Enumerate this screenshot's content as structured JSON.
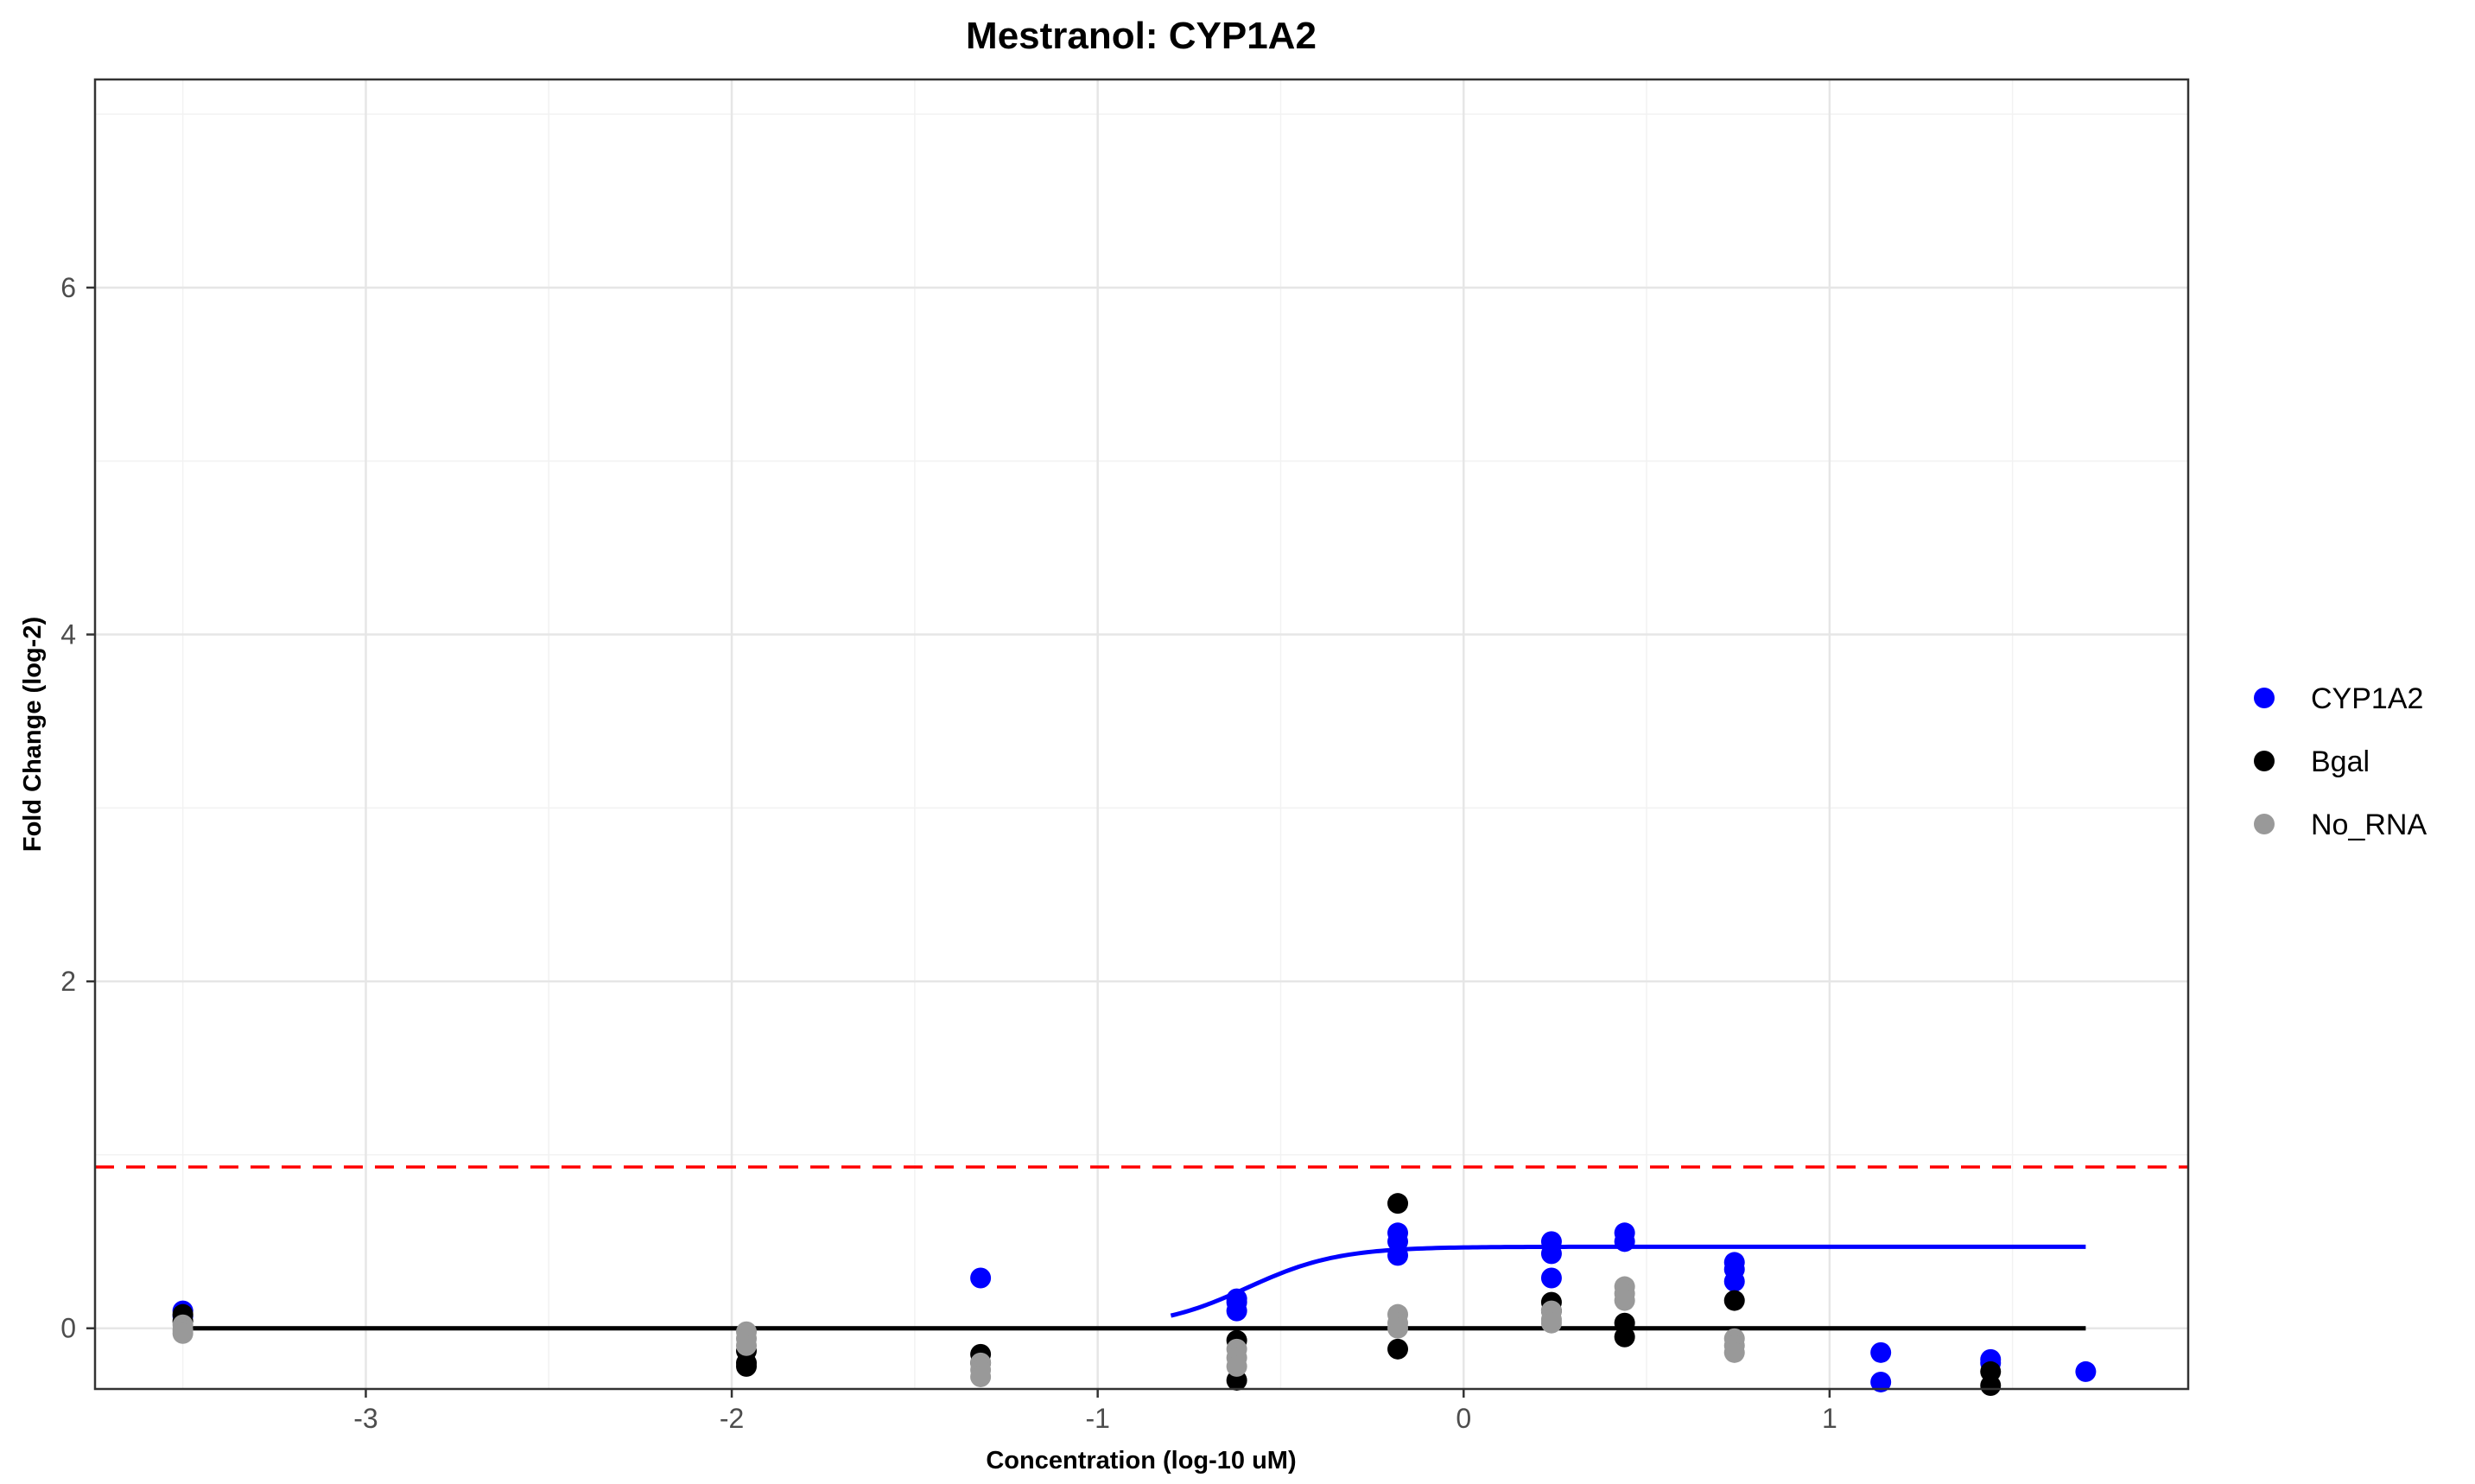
{
  "chart_data": {
    "type": "scatter",
    "title": "Mestranol: CYP1A2",
    "xlabel": "Concentration (log-10 uM)",
    "ylabel": "Fold Change (log-2)",
    "xlim": [
      -3.74,
      1.98
    ],
    "ylim": [
      -0.35,
      7.2
    ],
    "x_ticks": [
      -3,
      -2,
      -1,
      0,
      1
    ],
    "y_ticks": [
      0,
      2,
      4,
      6
    ],
    "grid": true,
    "legend_position": "right",
    "threshold_line": {
      "y": 0.93,
      "style": "dashed",
      "color": "#ff0000"
    },
    "series": [
      {
        "name": "CYP1A2",
        "color": "#0000ff",
        "points": [
          [
            -3.5,
            0.1
          ],
          [
            -3.5,
            0.07
          ],
          [
            -1.32,
            0.29
          ],
          [
            -0.62,
            0.17
          ],
          [
            -0.62,
            0.15
          ],
          [
            -0.62,
            0.1
          ],
          [
            -0.18,
            0.55
          ],
          [
            -0.18,
            0.5
          ],
          [
            -0.18,
            0.42
          ],
          [
            0.24,
            0.5
          ],
          [
            0.24,
            0.43
          ],
          [
            0.24,
            0.29
          ],
          [
            0.44,
            0.55
          ],
          [
            0.44,
            0.5
          ],
          [
            0.74,
            0.38
          ],
          [
            0.74,
            0.34
          ],
          [
            0.74,
            0.27
          ],
          [
            1.14,
            -0.14
          ],
          [
            1.14,
            -0.31
          ],
          [
            1.44,
            -0.18
          ],
          [
            1.44,
            -0.2
          ],
          [
            1.7,
            -0.25
          ]
        ],
        "fit": {
          "bottom": 0,
          "top": 0.47,
          "ec50": -0.59,
          "hill": 3.5,
          "x_range": [
            -0.8,
            1.7
          ]
        }
      },
      {
        "name": "Bgal",
        "color": "#000000",
        "points": [
          [
            -3.5,
            0.08
          ],
          [
            -3.5,
            0.04
          ],
          [
            -1.96,
            -0.13
          ],
          [
            -1.96,
            -0.2
          ],
          [
            -1.96,
            -0.22
          ],
          [
            -1.32,
            -0.15
          ],
          [
            -1.32,
            -0.2
          ],
          [
            -0.62,
            -0.07
          ],
          [
            -0.62,
            -0.3
          ],
          [
            -0.18,
            0.72
          ],
          [
            -0.18,
            -0.12
          ],
          [
            0.24,
            0.15
          ],
          [
            0.24,
            0.1
          ],
          [
            0.44,
            0.03
          ],
          [
            0.44,
            -0.05
          ],
          [
            0.74,
            0.16
          ],
          [
            1.44,
            -0.25
          ],
          [
            1.44,
            -0.33
          ]
        ],
        "fit": {
          "flat": 0,
          "x_range": [
            -3.5,
            1.7
          ]
        }
      },
      {
        "name": "No_RNA",
        "color": "#999999",
        "points": [
          [
            -3.5,
            0.02
          ],
          [
            -3.5,
            -0.01
          ],
          [
            -3.5,
            -0.03
          ],
          [
            -1.96,
            -0.02
          ],
          [
            -1.96,
            -0.06
          ],
          [
            -1.96,
            -0.1
          ],
          [
            -1.32,
            -0.2
          ],
          [
            -1.32,
            -0.24
          ],
          [
            -1.32,
            -0.28
          ],
          [
            -0.62,
            -0.12
          ],
          [
            -0.62,
            -0.17
          ],
          [
            -0.62,
            -0.22
          ],
          [
            -0.18,
            0.08
          ],
          [
            -0.18,
            0.03
          ],
          [
            -0.18,
            0.0
          ],
          [
            0.24,
            0.1
          ],
          [
            0.24,
            0.05
          ],
          [
            0.24,
            0.03
          ],
          [
            0.44,
            0.24
          ],
          [
            0.44,
            0.2
          ],
          [
            0.44,
            0.16
          ],
          [
            0.74,
            -0.06
          ],
          [
            0.74,
            -0.1
          ],
          [
            0.74,
            -0.14
          ]
        ],
        "fit": {
          "flat": 0,
          "x_range": [
            -3.5,
            1.7
          ]
        }
      }
    ]
  }
}
